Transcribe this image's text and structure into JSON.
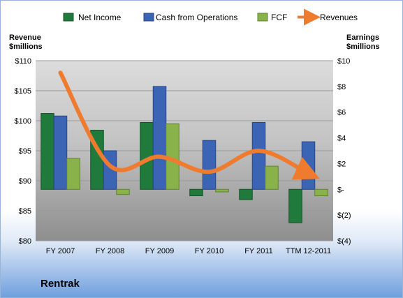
{
  "company": "Rentrak",
  "colors": {
    "net_income": "#1f7a3c",
    "cash_from_operations": "#3b64b5",
    "fcf": "#8ab24a",
    "revenues": "#ef7c2e"
  },
  "chart_data": {
    "type": "bar",
    "categories": [
      "FY 2007",
      "FY 2008",
      "FY 2009",
      "FY 2010",
      "FY 2011",
      "TTM 12-2011"
    ],
    "series": [
      {
        "name": "Net Income",
        "axis": "right",
        "values": [
          5.9,
          4.6,
          5.2,
          -0.5,
          -0.8,
          -2.6
        ]
      },
      {
        "name": "Cash from Operations",
        "axis": "right",
        "values": [
          5.7,
          3.0,
          8.0,
          3.8,
          5.2,
          3.7
        ]
      },
      {
        "name": "FCF",
        "axis": "right",
        "values": [
          2.4,
          -0.4,
          5.1,
          -0.2,
          1.8,
          -0.5
        ]
      },
      {
        "name": "Revenues",
        "type": "line",
        "axis": "left",
        "values": [
          108,
          92.5,
          94,
          91.5,
          95,
          91.2
        ]
      }
    ],
    "left_axis": {
      "title_line1": "Revenue",
      "title_line2": "$millions",
      "ylim": [
        80,
        110
      ],
      "ticks": [
        "$80",
        "$85",
        "$90",
        "$95",
        "$100",
        "$105",
        "$110"
      ]
    },
    "right_axis": {
      "title_line1": "Earnings",
      "title_line2": "$millions",
      "ylim": [
        -4,
        10
      ],
      "ticks": [
        "$(4)",
        "$(2)",
        "$-",
        "$2",
        "$4",
        "$6",
        "$8",
        "$10"
      ]
    },
    "legend_position": "top"
  }
}
